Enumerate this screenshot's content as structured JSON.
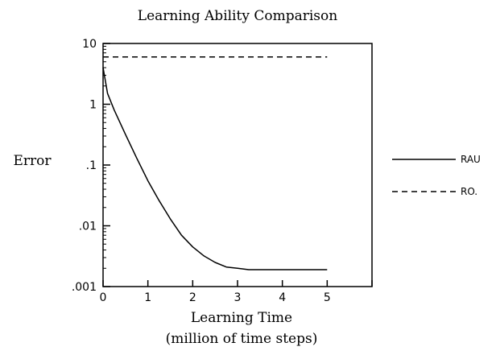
{
  "chart_data": {
    "type": "line",
    "title": "Learning Ability Comparison",
    "xlabel": "Learning Time",
    "xlabel_sub": "(million of time steps)",
    "ylabel": "Error",
    "xlim": [
      0,
      6
    ],
    "ylim": [
      0.001,
      10
    ],
    "yscale": "log",
    "x_ticks": [
      0,
      1,
      2,
      3,
      4,
      5
    ],
    "x_tick_labels": [
      "0",
      "1",
      "2",
      "3",
      "4",
      "5"
    ],
    "y_ticks": [
      0.001,
      0.01,
      0.1,
      1,
      10
    ],
    "y_tick_labels": [
      ".001",
      ".01",
      ".1",
      "1",
      "10"
    ],
    "grid": false,
    "legend_position": "right",
    "series": [
      {
        "name": "RAU",
        "line_style": "solid",
        "x": [
          0,
          0.1,
          0.25,
          0.5,
          0.75,
          1,
          1.25,
          1.5,
          1.75,
          2,
          2.25,
          2.5,
          2.75,
          3,
          3.25,
          3.5,
          4,
          4.5,
          5
        ],
        "y": [
          4,
          1.5,
          0.8,
          0.32,
          0.13,
          0.055,
          0.026,
          0.013,
          0.007,
          0.0045,
          0.0032,
          0.0025,
          0.0021,
          0.002,
          0.0019,
          0.0019,
          0.0019,
          0.0019,
          0.0019
        ]
      },
      {
        "name": "RO.",
        "line_style": "dashed",
        "x": [
          0,
          5
        ],
        "y": [
          6,
          6
        ]
      }
    ]
  }
}
